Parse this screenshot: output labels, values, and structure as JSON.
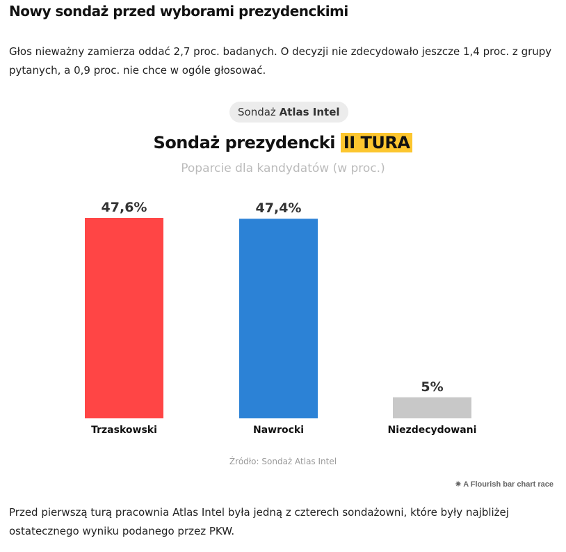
{
  "article": {
    "heading": "Nowy sondaż przed wyborami prezydenckimi",
    "para1": "Głos nieważny zamierza oddać 2,7 proc. badanych. O decyzji nie zdecydowało jeszcze 1,4 proc. z grupy pytanych, a 0,9 proc. nie chce w ogóle głosować.",
    "para2": "Przed pierwszą turą pracownia Atlas Intel była jedną z czterech sondażowni, które były najbliżej ostatecznego wyniku podanego przez PKW."
  },
  "pill": {
    "prefix": "Sondaż",
    "bold": "Atlas Intel"
  },
  "flourish": "A Flourish bar chart race",
  "chart_data": {
    "type": "bar",
    "title": "Sondaż prezydencki",
    "title_highlight": "II TURA",
    "subtitle": "Poparcie dla kandydatów (w proc.)",
    "categories": [
      "Trzaskowski",
      "Nawrocki",
      "Niezdecydowani"
    ],
    "values": [
      47.6,
      47.4,
      5
    ],
    "labels": [
      "47,6%",
      "47,4%",
      "5%"
    ],
    "colors": [
      "#ff4545",
      "#2c82d6",
      "#c8c8c8"
    ],
    "source": "Źródło: Sondaż Atlas Intel",
    "ylim": [
      0,
      50
    ]
  }
}
